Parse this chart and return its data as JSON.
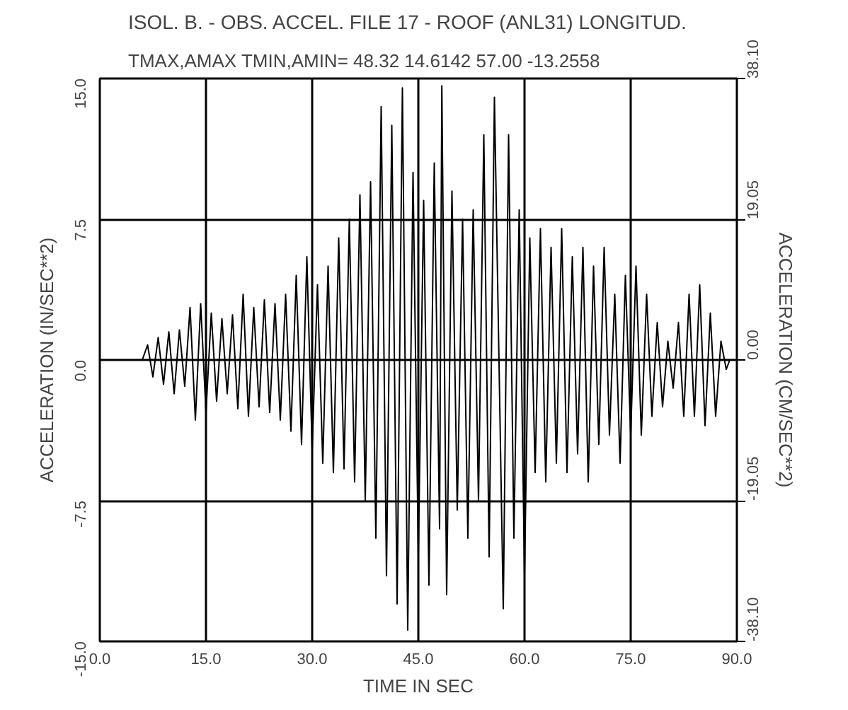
{
  "chart_data": {
    "type": "line",
    "title": "ISOL. B. - OBS. ACCEL. FILE 17 - ROOF (ANL31) LONGITUD.",
    "subtitle": "TMAX,AMAX TMIN,AMIN=  48.32    14.6142    57.00   -13.2558",
    "xlabel": "TIME IN SEC",
    "ylabel": "ACCELERATION (IN/SEC**2)",
    "y2label": "ACCELERATION (CM/SEC**2)",
    "x": [
      0,
      6,
      6.75,
      7.5,
      8.25,
      9,
      9.75,
      10.5,
      11.25,
      12,
      12.75,
      13.5,
      14.25,
      15,
      15.75,
      16.5,
      17.25,
      18,
      18.75,
      19.5,
      20.25,
      21,
      21.75,
      22.5,
      23.25,
      24,
      24.75,
      25.5,
      26.25,
      27,
      27.75,
      28.5,
      29.25,
      30,
      30.75,
      31.5,
      32.25,
      33,
      33.75,
      34.5,
      35.25,
      36,
      36.75,
      37.5,
      38.25,
      39,
      39.75,
      40.5,
      41.25,
      42,
      42.75,
      43.5,
      44.25,
      45,
      45.75,
      46.5,
      47.25,
      48,
      48.32,
      49,
      49.75,
      50.5,
      51.25,
      52,
      52.75,
      53.5,
      54.25,
      55,
      55.75,
      57,
      57.75,
      58.5,
      59.25,
      60,
      60.75,
      61.5,
      62.25,
      63,
      63.75,
      64.5,
      65.25,
      66,
      66.75,
      67.5,
      68.25,
      69,
      69.75,
      70.5,
      71.25,
      72,
      72.75,
      73.5,
      74.25,
      75,
      75.75,
      76.5,
      77.25,
      78,
      78.75,
      79.5,
      80.25,
      81,
      81.75,
      82.5,
      83.25,
      84,
      84.75,
      85.5,
      86.25,
      87,
      87.75,
      88.5,
      89
    ],
    "series": [
      {
        "color": "#000000",
        "values": [
          0,
          0,
          0.8,
          -0.9,
          1.2,
          -1.3,
          1.5,
          -1.8,
          1.6,
          -1.4,
          2.8,
          -3.2,
          3.0,
          -2.8,
          2.5,
          -2.2,
          2.2,
          -1.8,
          2.4,
          -2.6,
          3.5,
          -3.0,
          2.8,
          -2.5,
          3.2,
          -2.8,
          3.0,
          -3.2,
          3.5,
          -3.8,
          4.5,
          -4.5,
          5.5,
          -4.8,
          4.0,
          -5.5,
          5.0,
          -6.0,
          6.5,
          -5.8,
          7.5,
          -6.5,
          8.8,
          -7.5,
          9.5,
          -9.5,
          13.5,
          -11.5,
          12.5,
          -13.0,
          14.5,
          -14.4,
          10.0,
          -10.5,
          8.5,
          -12.0,
          10.5,
          -9.0,
          14.61,
          -12.5,
          9.0,
          -8.0,
          7.5,
          -9.5,
          8.0,
          -7.5,
          12.0,
          -10.5,
          14.0,
          -13.26,
          12.0,
          -9.5,
          8.0,
          -11.5,
          6.5,
          -6.0,
          7.0,
          -6.5,
          6.0,
          -5.5,
          7.0,
          -6.0,
          5.5,
          -5.0,
          6.0,
          -6.5,
          5.0,
          -4.5,
          6.0,
          -4.0,
          3.5,
          -5.5,
          4.5,
          -4.0,
          5.0,
          -4.0,
          3.5,
          -3.0,
          2.0,
          -2.5,
          1.0,
          -1.5,
          2.0,
          -3.0,
          3.5,
          -3.0,
          4.0,
          -3.5,
          2.5,
          -3.0,
          1.0,
          -0.5,
          0
        ]
      }
    ],
    "xlim": [
      0,
      90
    ],
    "ylim": [
      -15,
      15
    ],
    "y2lim": [
      -38.1,
      38.1
    ],
    "xticks": [
      {
        "value": 0,
        "label": "0.0"
      },
      {
        "value": 15,
        "label": "15.0"
      },
      {
        "value": 30,
        "label": "30.0"
      },
      {
        "value": 45,
        "label": "45.0"
      },
      {
        "value": 60,
        "label": "60.0"
      },
      {
        "value": 75,
        "label": "75.0"
      },
      {
        "value": 90,
        "label": "90.0"
      }
    ],
    "yticks": [
      {
        "value": -15,
        "label": "-15.0"
      },
      {
        "value": -7.5,
        "label": "-7.5"
      },
      {
        "value": 0,
        "label": "0.0"
      },
      7.5,
      {
        "value": 15,
        "label": "15.0"
      }
    ],
    "y2ticks": [
      {
        "value": -38.1,
        "label": "-38.10"
      },
      {
        "value": -19.05,
        "label": "-19.05"
      },
      {
        "value": 0,
        "label": "0.00"
      },
      19.05,
      {
        "value": 38.1,
        "label": "38.10"
      }
    ],
    "grid": true,
    "line_style": "solid"
  }
}
